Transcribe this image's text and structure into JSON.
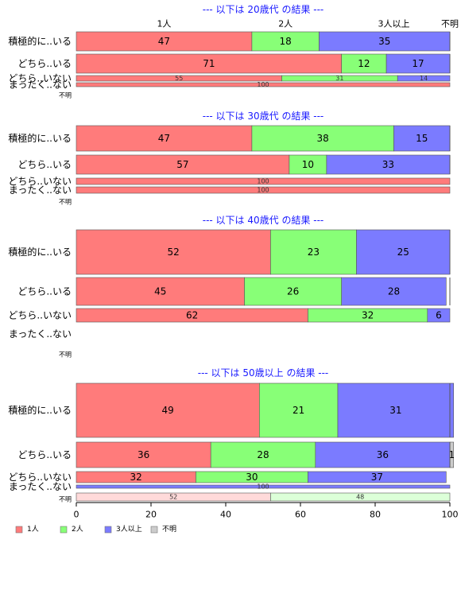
{
  "chart_data": {
    "type": "bar",
    "orientation": "horizontal-stacked-percent",
    "column_headers": [
      "1人",
      "2人",
      "3人以上",
      "不明"
    ],
    "series_names": [
      "1人",
      "2人",
      "3人以上",
      "不明"
    ],
    "colors": {
      "1人": "#ff7b7b",
      "2人": "#88ff77",
      "3人以上": "#7b7bff",
      "不明": "#cccccc"
    },
    "xlim": [
      0,
      100
    ],
    "xticks": [
      "0",
      "20",
      "40",
      "60",
      "80",
      "100"
    ],
    "legend_position": "bottom-left",
    "sections": [
      {
        "title": "--- 以下は 20歳代 の結果 ---",
        "rows": [
          {
            "label": "積極的に..いる",
            "values": [
              47,
              18,
              35,
              0
            ],
            "labels": [
              "47",
              "18",
              "35",
              ""
            ]
          },
          {
            "label": "どちら..いる",
            "values": [
              71,
              12,
              17,
              0
            ],
            "labels": [
              "71",
              "12",
              "17",
              ""
            ]
          },
          {
            "label": "どちら..いない",
            "values": [
              55,
              31,
              14,
              0
            ],
            "labels": [
              "55",
              "31",
              "14",
              ""
            ]
          },
          {
            "label": "まったく..ない",
            "values": [
              100,
              0,
              0,
              0
            ],
            "labels": [
              "100",
              "",
              "",
              ""
            ]
          },
          {
            "label": "不明",
            "values": [
              0,
              0,
              0,
              0
            ],
            "labels": [
              "",
              "",
              "",
              ""
            ]
          }
        ]
      },
      {
        "title": "--- 以下は 30歳代 の結果 ---",
        "rows": [
          {
            "label": "積極的に..いる",
            "values": [
              47,
              38,
              15,
              0
            ],
            "labels": [
              "47",
              "38",
              "15",
              ""
            ]
          },
          {
            "label": "どちら..いる",
            "values": [
              57,
              10,
              33,
              0
            ],
            "labels": [
              "57",
              "10",
              "33",
              ""
            ]
          },
          {
            "label": "どちら..いない",
            "values": [
              100,
              0,
              0,
              0
            ],
            "labels": [
              "100",
              "",
              "",
              ""
            ]
          },
          {
            "label": "まったく..ない",
            "values": [
              100,
              0,
              0,
              0
            ],
            "labels": [
              "100",
              "",
              "",
              ""
            ]
          },
          {
            "label": "不明",
            "values": [
              0,
              0,
              0,
              0
            ],
            "labels": [
              "",
              "",
              "",
              ""
            ]
          }
        ]
      },
      {
        "title": "--- 以下は 40歳代 の結果 ---",
        "rows": [
          {
            "label": "積極的に..いる",
            "values": [
              52,
              23,
              25,
              0
            ],
            "labels": [
              "52",
              "23",
              "25",
              ""
            ]
          },
          {
            "label": "どちら..いる",
            "values": [
              45,
              26,
              28,
              0
            ],
            "labels": [
              "45",
              "26",
              "28",
              ""
            ]
          },
          {
            "label": "どちら..いない",
            "values": [
              62,
              32,
              6,
              0
            ],
            "labels": [
              "62",
              "32",
              "6",
              ""
            ]
          },
          {
            "label": "まったく..ない",
            "values": [
              0,
              0,
              0,
              0
            ],
            "labels": [
              "",
              "",
              "",
              ""
            ]
          },
          {
            "label": "不明",
            "values": [
              0,
              0,
              0,
              0
            ],
            "labels": [
              "",
              "",
              "",
              ""
            ]
          }
        ]
      },
      {
        "title": "--- 以下は 50歳以上 の結果 ---",
        "rows": [
          {
            "label": "積極的に..いる",
            "values": [
              49,
              21,
              31,
              0
            ],
            "labels": [
              "49",
              "21",
              "31",
              ""
            ]
          },
          {
            "label": "どちら..いる",
            "values": [
              36,
              28,
              36,
              1
            ],
            "labels": [
              "36",
              "28",
              "36",
              "1"
            ]
          },
          {
            "label": "どちら..いない",
            "values": [
              32,
              30,
              37,
              0
            ],
            "labels": [
              "32",
              "30",
              "37",
              ""
            ]
          },
          {
            "label": "まったく..ない",
            "values": [
              0,
              0,
              100,
              0
            ],
            "labels": [
              "",
              "",
              "100",
              ""
            ]
          },
          {
            "label": "不明",
            "values": [
              52,
              48,
              0,
              0
            ],
            "labels": [
              "52",
              "48",
              "",
              ""
            ]
          }
        ]
      }
    ]
  }
}
